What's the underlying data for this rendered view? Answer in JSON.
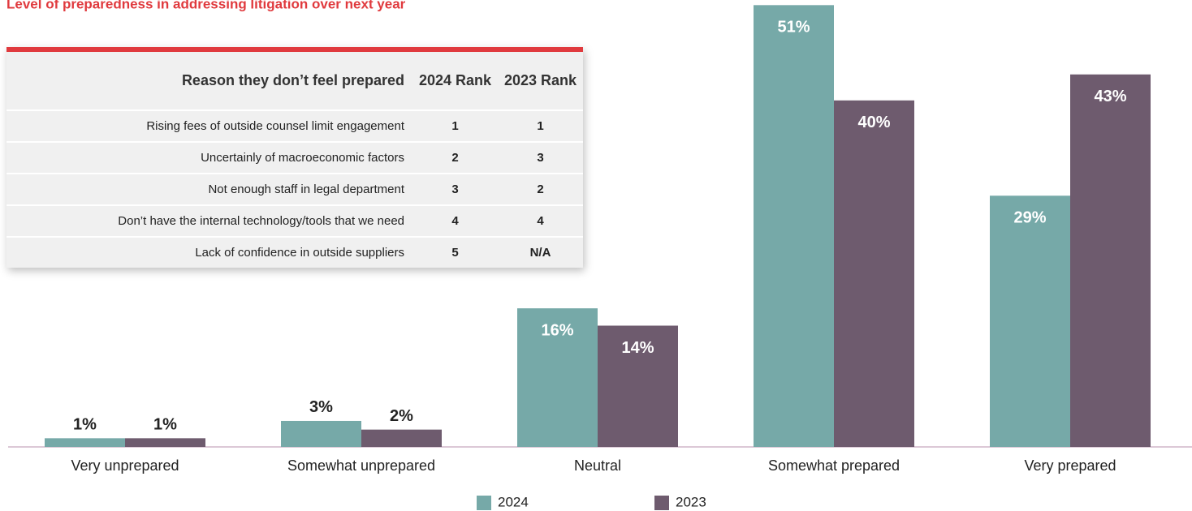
{
  "chart_data": {
    "type": "bar",
    "title": "Level of preparedness in addressing litigation over next year",
    "categories": [
      "Very unprepared",
      "Somewhat unprepared",
      "Neutral",
      "Somewhat prepared",
      "Very prepared"
    ],
    "series": [
      {
        "name": "2024",
        "color": "#76a9a8",
        "values": [
          1,
          3,
          16,
          51,
          29
        ],
        "value_labels": [
          "1%",
          "3%",
          "16%",
          "51%",
          "29%"
        ]
      },
      {
        "name": "2023",
        "color": "#6e5b6e",
        "values": [
          1,
          2,
          14,
          40,
          43
        ],
        "value_labels": [
          "1%",
          "2%",
          "14%",
          "40%",
          "43%"
        ]
      }
    ]
  },
  "table": {
    "header": [
      "Reason they don’t feel prepared",
      "2024 Rank",
      "2023 Rank"
    ],
    "rows": [
      [
        "Rising fees of outside counsel limit engagement",
        1,
        1
      ],
      [
        "Uncertainly of macroeconomic factors",
        2,
        3
      ],
      [
        "Not enough staff in legal department",
        3,
        2
      ],
      [
        "Don’t have the internal technology/tools that we need",
        4,
        4
      ],
      [
        "Lack of confidence in outside suppliers",
        5,
        "N/A"
      ]
    ]
  }
}
